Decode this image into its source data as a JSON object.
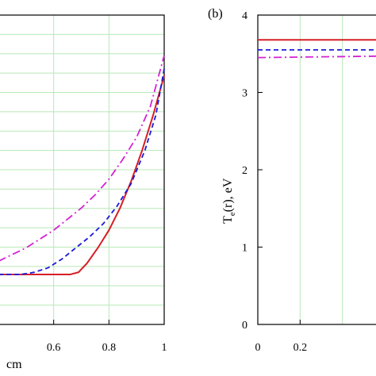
{
  "colors": {
    "series_solid": "#d61f26",
    "series_dashed": "#1a1adb",
    "series_dashdot": "#d422d4",
    "grid": "#b8e8b8"
  },
  "panel_a": {
    "xlabel_fragment": "cm"
  },
  "panel_b": {
    "label": "(b)",
    "ylabel_main": "T",
    "ylabel_sub": "e",
    "ylabel_rest": "(r), eV"
  },
  "chart_data": [
    {
      "type": "line",
      "panel": "a",
      "xlabel": "cm",
      "ylabel": "",
      "x_ticks": [
        "0.6",
        "0.8",
        "1"
      ],
      "xlim": [
        0.4,
        1.0
      ],
      "grid": true,
      "series": [
        {
          "style": "solid",
          "color": "#d61f26",
          "points": [
            [
              0.4,
              0.0
            ],
            [
              0.6,
              0.0
            ],
            [
              0.66,
              0.0
            ],
            [
              0.69,
              0.01
            ],
            [
              0.72,
              0.05
            ],
            [
              0.76,
              0.12
            ],
            [
              0.8,
              0.2
            ],
            [
              0.84,
              0.3
            ],
            [
              0.88,
              0.42
            ],
            [
              0.92,
              0.56
            ],
            [
              0.96,
              0.72
            ],
            [
              1.0,
              0.9
            ]
          ]
        },
        {
          "style": "dashed",
          "color": "#1a1adb",
          "points": [
            [
              0.4,
              0.0
            ],
            [
              0.48,
              0.0
            ],
            [
              0.53,
              0.01
            ],
            [
              0.58,
              0.03
            ],
            [
              0.63,
              0.07
            ],
            [
              0.68,
              0.12
            ],
            [
              0.73,
              0.17
            ],
            [
              0.78,
              0.23
            ],
            [
              0.83,
              0.31
            ],
            [
              0.88,
              0.41
            ],
            [
              0.93,
              0.56
            ],
            [
              0.97,
              0.72
            ],
            [
              1.0,
              0.93
            ]
          ]
        },
        {
          "style": "dashdot",
          "color": "#d422d4",
          "points": [
            [
              0.4,
              0.06
            ],
            [
              0.45,
              0.09
            ],
            [
              0.5,
              0.12
            ],
            [
              0.55,
              0.16
            ],
            [
              0.6,
              0.2
            ],
            [
              0.65,
              0.25
            ],
            [
              0.7,
              0.3
            ],
            [
              0.75,
              0.36
            ],
            [
              0.8,
              0.43
            ],
            [
              0.85,
              0.52
            ],
            [
              0.9,
              0.62
            ],
            [
              0.95,
              0.76
            ],
            [
              1.0,
              0.99
            ]
          ]
        }
      ]
    },
    {
      "type": "line",
      "panel": "b",
      "xlabel": "",
      "ylabel": "Te(r), eV",
      "x_ticks": [
        "0",
        "0.2"
      ],
      "y_ticks": [
        "0",
        "1",
        "2",
        "3",
        "4"
      ],
      "xlim": [
        0,
        0.6
      ],
      "ylim": [
        0,
        4
      ],
      "grid": true,
      "series": [
        {
          "style": "solid",
          "color": "#d61f26",
          "points": [
            [
              0,
              3.68
            ],
            [
              0.6,
              3.68
            ]
          ]
        },
        {
          "style": "dashed",
          "color": "#1a1adb",
          "points": [
            [
              0,
              3.55
            ],
            [
              0.6,
              3.55
            ]
          ]
        },
        {
          "style": "dashdot",
          "color": "#d422d4",
          "points": [
            [
              0,
              3.45
            ],
            [
              0.6,
              3.47
            ]
          ]
        }
      ]
    }
  ]
}
